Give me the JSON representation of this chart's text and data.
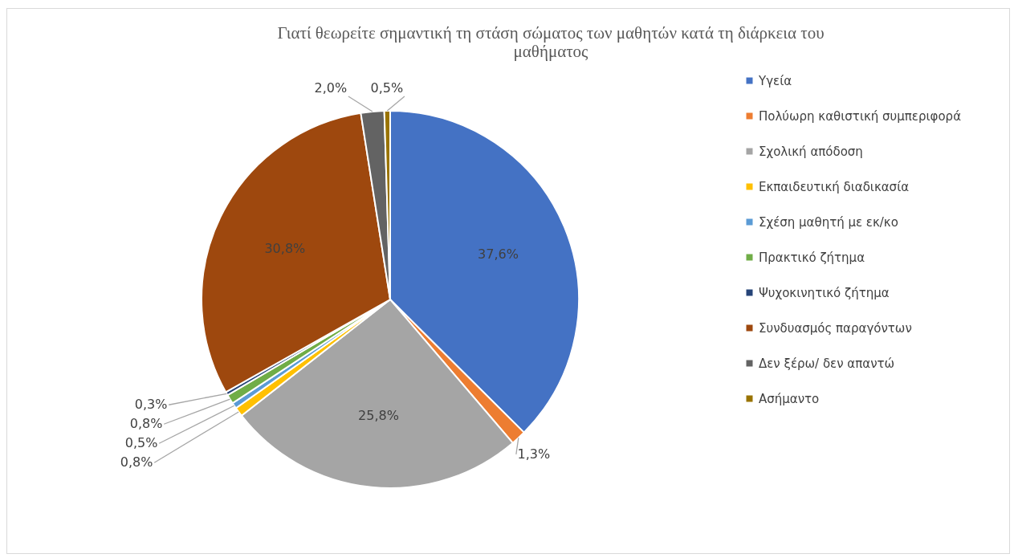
{
  "chart_data": {
    "type": "pie",
    "title": "Γιατί θεωρείτε σημαντική τη στάση σώματος των μαθητών κατά τη διάρκεια του μαθήματος",
    "categories": [
      "Υγεία",
      "Πολύωρη καθιστική συμπεριφορά",
      "Σχολική απόδοση",
      "Εκπαιδευτική διαδικασία",
      "Σχέση μαθητή με εκ/κο",
      "Πρακτικό ζήτημα",
      "Ψυχοκινητικό ζήτημα",
      "Συνδυασμός παραγόντων",
      "Δεν ξέρω/ δεν  απαντώ",
      "Ασήμαντο"
    ],
    "values": [
      37.6,
      1.3,
      25.8,
      0.8,
      0.5,
      0.8,
      0.3,
      30.8,
      2.0,
      0.5
    ],
    "value_labels": [
      "37,6%",
      "1,3%",
      "25,8%",
      "0,8%",
      "0,5%",
      "0,8%",
      "0,3%",
      "30,8%",
      "2,0%",
      "0,5%"
    ],
    "colors": [
      "#4472c4",
      "#ed7d31",
      "#a5a5a5",
      "#ffc000",
      "#5b9bd5",
      "#70ad47",
      "#264478",
      "#9e480e",
      "#636363",
      "#997300"
    ],
    "legend": "right"
  }
}
